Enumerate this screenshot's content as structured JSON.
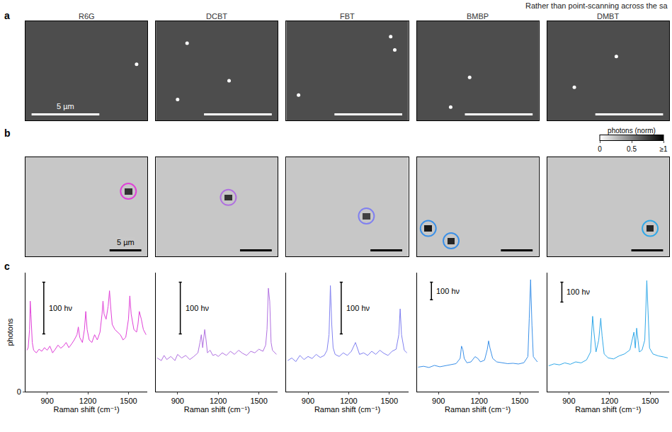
{
  "page_text": "Rather than point-scanning across the sa",
  "panel_labels": [
    "a",
    "b",
    "c"
  ],
  "chart_data": [
    {
      "type": "scatter",
      "title": "R6G",
      "xlim": [
        0,
        9
      ],
      "ylim": [
        0,
        9
      ],
      "tick_labels": false,
      "x": [
        8.2
      ],
      "y": [
        5.1
      ],
      "color": "#ffffff",
      "marker": "circle",
      "scale_bar": {
        "value": 5,
        "label": "5 µm"
      }
    },
    {
      "type": "scatter",
      "title": "DCBT",
      "xlim": [
        0,
        9
      ],
      "ylim": [
        0,
        9
      ],
      "tick_labels": false,
      "x": [
        2.3,
        5.4,
        1.6
      ],
      "y": [
        7.0,
        3.6,
        1.9
      ],
      "color": "#ffffff",
      "marker": "circle",
      "scale_bar": {
        "value": 5
      }
    },
    {
      "type": "scatter",
      "title": "FBT",
      "xlim": [
        0,
        9
      ],
      "ylim": [
        0,
        9
      ],
      "tick_labels": false,
      "x": [
        7.7,
        8.0,
        0.9
      ],
      "y": [
        7.6,
        6.4,
        2.3
      ],
      "color": "#ffffff",
      "marker": "circle",
      "scale_bar": {
        "value": 5
      }
    },
    {
      "type": "scatter",
      "title": "BMBP",
      "xlim": [
        0,
        9
      ],
      "ylim": [
        0,
        9
      ],
      "tick_labels": false,
      "x": [
        3.9,
        2.5
      ],
      "y": [
        3.9,
        1.2
      ],
      "color": "#ffffff",
      "marker": "circle",
      "scale_bar": {
        "value": 5
      }
    },
    {
      "type": "scatter",
      "title": "DMBT",
      "xlim": [
        0,
        9
      ],
      "ylim": [
        0,
        9
      ],
      "tick_labels": false,
      "x": [
        5.1,
        2.0
      ],
      "y": [
        5.8,
        3.0
      ],
      "color": "#ffffff",
      "marker": "circle",
      "scale_bar": {
        "value": 5
      }
    },
    {
      "type": "heatmap",
      "xlim": [
        0,
        19.2
      ],
      "ylim": [
        0,
        19.2
      ],
      "tick_labels": false,
      "pixel_size": 1.2,
      "shape": [
        16,
        16
      ],
      "background": 0.22,
      "hot_pixels": [
        {
          "row": 5,
          "col": 13,
          "value": 0.8
        }
      ],
      "zlim": [
        0,
        1
      ],
      "color": "#e040d8",
      "marker": "circle-open",
      "scale_bar": {
        "value": 5,
        "label": "5 µm"
      }
    },
    {
      "type": "heatmap",
      "xlim": [
        0,
        19.2
      ],
      "ylim": [
        0,
        19.2
      ],
      "tick_labels": false,
      "pixel_size": 1.2,
      "shape": [
        16,
        16
      ],
      "background": 0.22,
      "hot_pixels": [
        {
          "row": 6,
          "col": 9,
          "value": 0.8
        }
      ],
      "zlim": [
        0,
        1
      ],
      "color": "#b070e0",
      "marker": "circle-open",
      "scale_bar": {
        "value": 5
      }
    },
    {
      "type": "heatmap",
      "xlim": [
        0,
        19.2
      ],
      "ylim": [
        0,
        19.2
      ],
      "tick_labels": false,
      "pixel_size": 1.2,
      "shape": [
        16,
        16
      ],
      "background": 0.22,
      "hot_pixels": [
        {
          "row": 9,
          "col": 10,
          "value": 0.75
        }
      ],
      "zlim": [
        0,
        1
      ],
      "color": "#8080f0",
      "marker": "circle-open",
      "scale_bar": {
        "value": 5
      }
    },
    {
      "type": "heatmap",
      "xlim": [
        0,
        19.2
      ],
      "ylim": [
        0,
        19.2
      ],
      "tick_labels": false,
      "pixel_size": 1.2,
      "shape": [
        16,
        16
      ],
      "background": 0.22,
      "hot_pixels": [
        {
          "row": 11,
          "col": 1,
          "value": 0.9
        },
        {
          "row": 13,
          "col": 4,
          "value": 0.85
        }
      ],
      "zlim": [
        0,
        1
      ],
      "color": "#3a90e8",
      "marker": "circle-open",
      "scale_bar": {
        "value": 5
      }
    },
    {
      "type": "heatmap",
      "xlim": [
        0,
        19.2
      ],
      "ylim": [
        0,
        19.2
      ],
      "tick_labels": false,
      "pixel_size": 1.2,
      "shape": [
        16,
        16
      ],
      "background": 0.22,
      "hot_pixels": [
        {
          "row": 11,
          "col": 13,
          "value": 0.85
        }
      ],
      "zlim": [
        0,
        1
      ],
      "color": "#30a8e8",
      "marker": "circle-open",
      "scale_bar": {
        "value": 5
      },
      "colorbar": {
        "title": "photons (norm)",
        "ticks": [
          0,
          0.5,
          {
            "value": 1,
            "label": "≥1"
          }
        ]
      }
    },
    {
      "type": "line",
      "color": "#e040d8",
      "xlim": [
        740,
        1640
      ],
      "xticks": [
        900,
        1200,
        1500
      ],
      "ylim": [
        0,
        230
      ],
      "yticks": [
        0
      ],
      "xlabel": "Raman shift (cm⁻¹)",
      "ylabel": "photons",
      "scale_bar": {
        "value": 100,
        "label": "100 hν"
      },
      "x": [
        750,
        760,
        770,
        775,
        780,
        790,
        800,
        820,
        840,
        860,
        880,
        900,
        920,
        940,
        960,
        980,
        1000,
        1020,
        1040,
        1060,
        1080,
        1100,
        1120,
        1130,
        1140,
        1160,
        1175,
        1185,
        1195,
        1210,
        1230,
        1250,
        1270,
        1290,
        1305,
        1312,
        1320,
        1335,
        1350,
        1360,
        1370,
        1380,
        1400,
        1420,
        1440,
        1460,
        1480,
        1500,
        1510,
        1520,
        1540,
        1560,
        1570,
        1580,
        1595,
        1610,
        1630
      ],
      "values": [
        80,
        85,
        120,
        175,
        150,
        95,
        80,
        75,
        82,
        78,
        85,
        80,
        88,
        75,
        82,
        90,
        84,
        88,
        95,
        85,
        92,
        100,
        110,
        125,
        105,
        95,
        120,
        155,
        120,
        100,
        95,
        110,
        100,
        115,
        150,
        175,
        150,
        140,
        165,
        195,
        160,
        130,
        120,
        115,
        110,
        100,
        105,
        140,
        185,
        150,
        120,
        115,
        130,
        155,
        140,
        120,
        110
      ]
    },
    {
      "type": "line",
      "color": "#b070e0",
      "xlim": [
        740,
        1640
      ],
      "xticks": [
        900,
        1200,
        1500
      ],
      "ylim": [
        0,
        230
      ],
      "yticks": [],
      "xlabel": "Raman shift (cm⁻¹)",
      "scale_bar": {
        "value": 100,
        "label": "100 hν"
      },
      "x": [
        750,
        780,
        800,
        820,
        850,
        880,
        900,
        930,
        960,
        990,
        1020,
        1050,
        1065,
        1075,
        1085,
        1100,
        1110,
        1120,
        1140,
        1160,
        1180,
        1200,
        1230,
        1260,
        1290,
        1320,
        1350,
        1380,
        1410,
        1440,
        1470,
        1500,
        1530,
        1550,
        1560,
        1570,
        1580,
        1590,
        1600,
        1620,
        1630
      ],
      "values": [
        65,
        60,
        70,
        62,
        68,
        60,
        72,
        65,
        70,
        62,
        68,
        75,
        95,
        110,
        85,
        120,
        100,
        75,
        80,
        70,
        72,
        68,
        75,
        70,
        78,
        72,
        80,
        74,
        70,
        78,
        75,
        82,
        78,
        90,
        120,
        200,
        175,
        95,
        80,
        75,
        72
      ]
    },
    {
      "type": "line",
      "color": "#8080f0",
      "xlim": [
        740,
        1640
      ],
      "xticks": [
        900,
        1200,
        1500
      ],
      "ylim": [
        0,
        230
      ],
      "yticks": [],
      "xlabel": "Raman shift (cm⁻¹)",
      "scale_bar": {
        "value": 100,
        "label": "100 hν"
      },
      "x": [
        750,
        780,
        810,
        840,
        870,
        900,
        930,
        960,
        990,
        1020,
        1040,
        1055,
        1065,
        1075,
        1085,
        1100,
        1130,
        1160,
        1190,
        1220,
        1250,
        1280,
        1310,
        1340,
        1370,
        1400,
        1430,
        1460,
        1490,
        1520,
        1550,
        1570,
        1580,
        1590,
        1610,
        1630
      ],
      "values": [
        60,
        65,
        58,
        70,
        62,
        68,
        64,
        72,
        66,
        70,
        80,
        110,
        205,
        130,
        85,
        72,
        68,
        75,
        70,
        78,
        95,
        72,
        75,
        70,
        78,
        72,
        80,
        74,
        70,
        78,
        82,
        110,
        160,
        110,
        80,
        75
      ]
    },
    {
      "type": "line",
      "color": "#3a90e8",
      "xlim": [
        740,
        1640
      ],
      "xticks": [
        900,
        1200,
        1500
      ],
      "ylim": [
        0,
        680
      ],
      "yticks": [],
      "xlabel": "Raman shift (cm⁻¹)",
      "scale_bar": {
        "value": 100,
        "label": "100 hν"
      },
      "x": [
        750,
        790,
        830,
        870,
        910,
        950,
        990,
        1030,
        1060,
        1070,
        1080,
        1090,
        1110,
        1140,
        1170,
        1190,
        1210,
        1240,
        1260,
        1270,
        1280,
        1300,
        1330,
        1370,
        1410,
        1450,
        1490,
        1530,
        1560,
        1570,
        1580,
        1590,
        1600,
        1630
      ],
      "values": [
        140,
        145,
        138,
        150,
        142,
        148,
        155,
        160,
        190,
        260,
        240,
        190,
        165,
        170,
        200,
        190,
        170,
        180,
        240,
        290,
        250,
        190,
        170,
        165,
        160,
        162,
        158,
        165,
        200,
        420,
        640,
        380,
        200,
        170
      ]
    },
    {
      "type": "line",
      "color": "#30a8e8",
      "xlim": [
        740,
        1640
      ],
      "xticks": [
        900,
        1200,
        1500
      ],
      "ylim": [
        0,
        600
      ],
      "yticks": [],
      "xlabel": "Raman shift (cm⁻¹)",
      "scale_bar": {
        "value": 100,
        "label": "100 hν"
      },
      "x": [
        750,
        790,
        830,
        870,
        910,
        950,
        990,
        1030,
        1060,
        1075,
        1085,
        1100,
        1120,
        1135,
        1145,
        1160,
        1190,
        1230,
        1270,
        1310,
        1350,
        1380,
        1390,
        1400,
        1410,
        1420,
        1440,
        1460,
        1475,
        1485,
        1495,
        1520,
        1560,
        1600,
        1630
      ],
      "values": [
        130,
        140,
        135,
        145,
        138,
        150,
        145,
        160,
        200,
        380,
        300,
        200,
        260,
        370,
        280,
        190,
        170,
        165,
        180,
        190,
        210,
        300,
        220,
        320,
        260,
        200,
        210,
        260,
        560,
        400,
        220,
        190,
        180,
        175,
        170
      ]
    }
  ]
}
